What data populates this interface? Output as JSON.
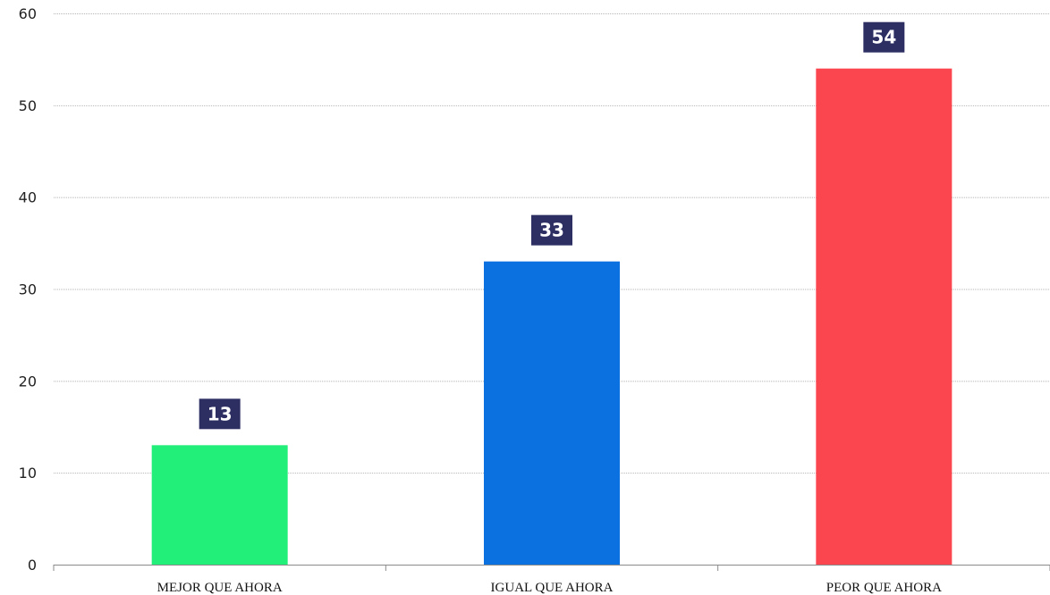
{
  "chart_data": {
    "type": "bar",
    "categories": [
      "MEJOR QUE AHORA",
      "IGUAL QUE AHORA",
      "PEOR QUE AHORA"
    ],
    "values": [
      13,
      33,
      54
    ],
    "bar_colors": [
      "#22ee7a",
      "#0b70e0",
      "#fb464f"
    ],
    "data_label_bg": "#2d2f63",
    "title": "",
    "xlabel": "",
    "ylabel": "",
    "ylim": [
      0,
      60
    ],
    "yticks": [
      0,
      10,
      20,
      30,
      40,
      50,
      60
    ],
    "grid": true,
    "legend": "none"
  }
}
